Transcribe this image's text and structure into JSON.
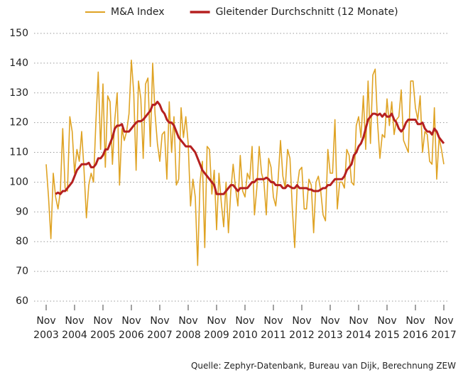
{
  "chart_data": {
    "type": "line",
    "categories": [
      "Nov 2003",
      null,
      null,
      null,
      null,
      null,
      null,
      null,
      null,
      null,
      null,
      null,
      "Nov 2004",
      null,
      null,
      null,
      null,
      null,
      null,
      null,
      null,
      null,
      null,
      null,
      "Nov 2005",
      null,
      null,
      null,
      null,
      null,
      null,
      null,
      null,
      null,
      null,
      null,
      "Nov 2006",
      null,
      null,
      null,
      null,
      null,
      null,
      null,
      null,
      null,
      null,
      null,
      "Nov 2007",
      null,
      null,
      null,
      null,
      null,
      null,
      null,
      null,
      null,
      null,
      null,
      "Nov 2008",
      null,
      null,
      null,
      null,
      null,
      null,
      null,
      null,
      null,
      null,
      null,
      "Nov 2009",
      null,
      null,
      null,
      null,
      null,
      null,
      null,
      null,
      null,
      null,
      null,
      "Nov 2010",
      null,
      null,
      null,
      null,
      null,
      null,
      null,
      null,
      null,
      null,
      null,
      "Nov 2011",
      null,
      null,
      null,
      null,
      null,
      null,
      null,
      null,
      null,
      null,
      null,
      "Nov 2012",
      null,
      null,
      null,
      null,
      null,
      null,
      null,
      null,
      null,
      null,
      null,
      "Nov 2013",
      null,
      null,
      null,
      null,
      null,
      null,
      null,
      null,
      null,
      null,
      null,
      "Nov 2014",
      null,
      null,
      null,
      null,
      null,
      null,
      null,
      null,
      null,
      null,
      null,
      "Nov 2015",
      null,
      null,
      null,
      null,
      null,
      null,
      null,
      null,
      null,
      null,
      null,
      "Nov 2016",
      null,
      null,
      null,
      null,
      null,
      null,
      null,
      null,
      null,
      null,
      null,
      "Nov 2017"
    ],
    "series": [
      {
        "name": "M&A Index",
        "color": "#dfa324",
        "width": 1.6,
        "values": [
          106,
          95,
          81,
          103,
          95,
          91,
          97,
          118,
          98,
          97,
          122,
          117,
          103,
          111,
          107,
          117,
          104,
          88,
          99,
          103,
          100,
          120,
          137,
          111,
          133,
          105,
          129,
          127,
          106,
          121,
          130,
          99,
          118,
          114,
          117,
          123,
          141,
          130,
          104,
          134,
          128,
          108,
          133,
          135,
          112,
          140,
          123,
          113,
          107,
          116,
          117,
          101,
          127,
          110,
          122,
          99,
          101,
          125,
          115,
          122,
          113,
          92,
          101,
          95,
          72,
          100,
          107,
          78,
          112,
          111,
          96,
          104,
          84,
          103,
          93,
          85,
          100,
          83,
          97,
          106,
          98,
          92,
          109,
          97,
          95,
          103,
          101,
          112,
          89,
          98,
          112,
          103,
          100,
          89,
          108,
          105,
          95,
          92,
          101,
          114,
          102,
          98,
          111,
          108,
          91,
          78,
          98,
          104,
          105,
          91,
          91,
          101,
          99,
          83,
          100,
          102,
          97,
          89,
          87,
          111,
          103,
          103,
          121,
          91,
          100,
          100,
          98,
          111,
          109,
          100,
          99,
          119,
          122,
          115,
          129,
          111,
          134,
          113,
          136,
          138,
          120,
          108,
          116,
          115,
          128,
          119,
          127,
          116,
          121,
          122,
          131,
          114,
          112,
          110,
          134,
          134,
          125,
          121,
          129,
          110,
          117,
          116,
          107,
          106,
          125,
          101,
          115,
          111,
          106
        ]
      },
      {
        "name": "Gleitender Durchschnitt (12 Monate)",
        "color": "#b52020",
        "width": 3,
        "values": [
          null,
          null,
          null,
          null,
          96,
          96.5,
          96,
          97,
          97,
          98,
          99,
          100,
          102,
          104,
          105,
          106,
          106,
          106,
          106.5,
          105,
          105,
          106,
          108,
          108,
          109,
          111,
          111,
          113,
          115,
          118,
          119,
          119,
          119.5,
          117,
          117,
          117,
          118,
          119,
          120,
          120.5,
          120.5,
          121,
          122,
          123,
          124,
          126,
          126,
          127,
          126,
          124,
          123,
          121,
          120,
          120,
          119,
          117,
          115,
          114,
          113,
          112,
          112,
          112,
          111,
          110,
          108,
          106,
          104,
          103,
          102,
          101,
          100,
          99,
          96,
          96,
          96,
          96,
          97,
          98,
          99,
          99,
          98,
          97,
          98,
          98,
          98,
          98,
          99,
          100,
          100,
          101,
          101,
          101,
          101,
          101.5,
          101,
          100,
          100,
          99,
          99,
          99,
          98,
          98,
          99,
          98.5,
          98,
          98,
          99,
          98,
          98,
          98,
          98,
          97.5,
          97.5,
          97,
          97,
          97,
          97.5,
          98,
          98,
          99,
          99,
          100,
          101,
          101,
          101,
          101,
          102,
          104,
          105,
          106,
          109,
          110,
          112,
          113,
          115,
          118,
          121,
          122,
          123,
          123,
          122.5,
          123,
          122,
          123,
          122,
          122,
          123,
          121,
          120,
          118,
          117,
          118,
          120,
          121,
          121,
          121,
          121,
          119.5,
          119.5,
          120,
          118,
          117,
          117,
          116,
          118,
          117,
          115,
          114,
          113
        ]
      }
    ],
    "ylim": [
      60,
      150
    ],
    "yticks": [
      60,
      70,
      80,
      90,
      100,
      110,
      120,
      130,
      140,
      150
    ],
    "grid": true,
    "source": "Quelle: Zephyr-Datenbank, Bureau van Dijk, Berechnung ZEW"
  }
}
